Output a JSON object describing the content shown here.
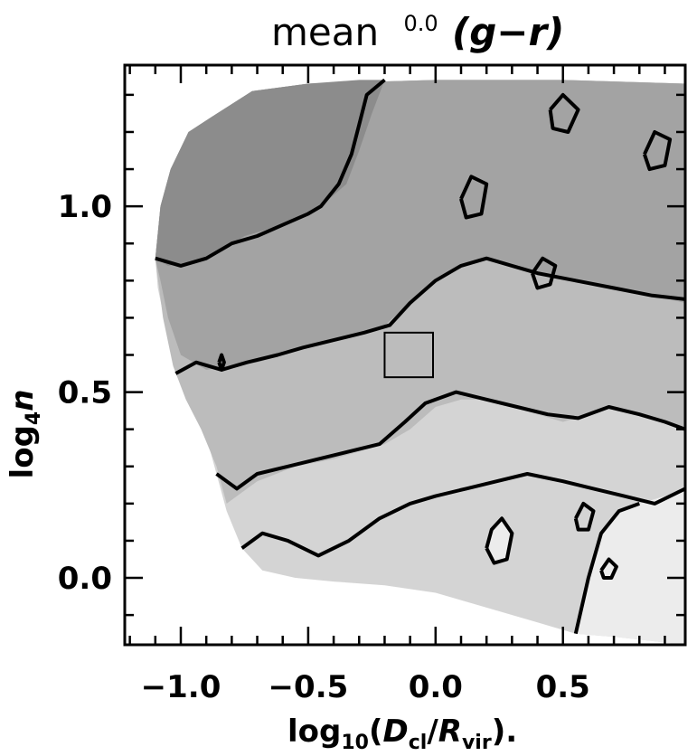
{
  "chart_data": {
    "type": "contour",
    "title": "mean",
    "title_superscript": "0.0",
    "title_math": "(g−r)",
    "xlabel": "log₁₀(D_cl/R_vir).",
    "xlabel_parts": {
      "prefix": "log",
      "sub": "10",
      "open": "(",
      "d": "D",
      "d_sub": "cl",
      "slash": "/",
      "r": "R",
      "r_sub": "vir",
      "close": ").",
      "last": ""
    },
    "ylabel_parts": {
      "prefix": "log",
      "sub": "4",
      "var": "n"
    },
    "xlim": [
      -1.22,
      0.98
    ],
    "ylim": [
      -0.18,
      1.38
    ],
    "xticks": [
      -1.0,
      -0.5,
      0.0,
      0.5
    ],
    "xtick_labels": [
      "−1.0",
      "−0.5",
      "0.0",
      "0.5"
    ],
    "yticks": [
      0.0,
      0.5,
      1.0
    ],
    "ytick_labels": [
      "0.0",
      "0.5",
      "1.0"
    ],
    "colors": {
      "level_darkest": "#8c8c8c",
      "level_dark": "#a3a3a3",
      "level_mid": "#bcbcbc",
      "level_light": "#d4d4d4",
      "level_lightest": "#ececec",
      "contour_line": "#000000",
      "background": "#ffffff"
    },
    "filled_regions": [
      {
        "level": "level_light",
        "points": [
          [
            -1.1,
            0.86
          ],
          [
            -1.08,
            1.0
          ],
          [
            -1.04,
            1.1
          ],
          [
            -0.97,
            1.2
          ],
          [
            -0.88,
            1.24
          ],
          [
            -0.72,
            1.31
          ],
          [
            -0.5,
            1.33
          ],
          [
            0.0,
            1.34
          ],
          [
            0.5,
            1.34
          ],
          [
            0.98,
            1.33
          ],
          [
            0.98,
            -0.18
          ],
          [
            0.72,
            -0.16
          ],
          [
            0.55,
            -0.15
          ],
          [
            0.4,
            -0.12
          ],
          [
            0.2,
            -0.08
          ],
          [
            0.0,
            -0.04
          ],
          [
            -0.2,
            -0.02
          ],
          [
            -0.4,
            -0.01
          ],
          [
            -0.55,
            0.0
          ],
          [
            -0.68,
            0.02
          ],
          [
            -0.76,
            0.08
          ],
          [
            -0.82,
            0.18
          ],
          [
            -0.86,
            0.28
          ],
          [
            -0.9,
            0.38
          ],
          [
            -0.96,
            0.46
          ],
          [
            -1.02,
            0.55
          ],
          [
            -1.06,
            0.68
          ],
          [
            -1.09,
            0.78
          ]
        ]
      },
      {
        "level": "level_mid",
        "points": [
          [
            -1.1,
            0.86
          ],
          [
            -1.08,
            1.0
          ],
          [
            -1.04,
            1.1
          ],
          [
            -0.97,
            1.2
          ],
          [
            -0.88,
            1.24
          ],
          [
            -0.72,
            1.31
          ],
          [
            -0.5,
            1.33
          ],
          [
            0.0,
            1.34
          ],
          [
            0.5,
            1.34
          ],
          [
            0.98,
            1.33
          ],
          [
            0.98,
            0.4
          ],
          [
            0.9,
            0.42
          ],
          [
            0.8,
            0.44
          ],
          [
            0.7,
            0.46
          ],
          [
            0.6,
            0.44
          ],
          [
            0.5,
            0.42
          ],
          [
            0.4,
            0.44
          ],
          [
            0.3,
            0.46
          ],
          [
            0.2,
            0.48
          ],
          [
            0.1,
            0.48
          ],
          [
            0.0,
            0.46
          ],
          [
            -0.1,
            0.4
          ],
          [
            -0.2,
            0.36
          ],
          [
            -0.3,
            0.34
          ],
          [
            -0.4,
            0.32
          ],
          [
            -0.55,
            0.3
          ],
          [
            -0.7,
            0.26
          ],
          [
            -0.78,
            0.22
          ],
          [
            -0.82,
            0.2
          ],
          [
            -0.86,
            0.3
          ],
          [
            -0.92,
            0.4
          ],
          [
            -0.98,
            0.48
          ],
          [
            -1.03,
            0.57
          ],
          [
            -1.07,
            0.7
          ]
        ]
      },
      {
        "level": "level_dark",
        "points": [
          [
            -1.1,
            0.86
          ],
          [
            -1.08,
            1.0
          ],
          [
            -1.04,
            1.1
          ],
          [
            -0.97,
            1.2
          ],
          [
            -0.88,
            1.24
          ],
          [
            -0.72,
            1.31
          ],
          [
            -0.5,
            1.33
          ],
          [
            0.0,
            1.34
          ],
          [
            0.5,
            1.34
          ],
          [
            0.98,
            1.33
          ],
          [
            0.98,
            0.74
          ],
          [
            0.85,
            0.76
          ],
          [
            0.7,
            0.78
          ],
          [
            0.55,
            0.8
          ],
          [
            0.4,
            0.82
          ],
          [
            0.3,
            0.84
          ],
          [
            0.2,
            0.86
          ],
          [
            0.1,
            0.84
          ],
          [
            0.0,
            0.8
          ],
          [
            -0.1,
            0.74
          ],
          [
            -0.2,
            0.68
          ],
          [
            -0.3,
            0.66
          ],
          [
            -0.4,
            0.64
          ],
          [
            -0.5,
            0.62
          ],
          [
            -0.6,
            0.6
          ],
          [
            -0.7,
            0.58
          ],
          [
            -0.8,
            0.57
          ],
          [
            -0.9,
            0.56
          ],
          [
            -1.0,
            0.6
          ],
          [
            -1.05,
            0.7
          ],
          [
            -1.08,
            0.8
          ]
        ]
      },
      {
        "level": "level_darkest",
        "points": [
          [
            -1.1,
            0.86
          ],
          [
            -1.08,
            1.0
          ],
          [
            -1.04,
            1.1
          ],
          [
            -0.97,
            1.2
          ],
          [
            -0.88,
            1.24
          ],
          [
            -0.72,
            1.31
          ],
          [
            -0.5,
            1.33
          ],
          [
            -0.3,
            1.34
          ],
          [
            -0.2,
            1.34
          ],
          [
            -0.25,
            1.25
          ],
          [
            -0.3,
            1.15
          ],
          [
            -0.35,
            1.06
          ],
          [
            -0.45,
            1.0
          ],
          [
            -0.55,
            0.96
          ],
          [
            -0.65,
            0.94
          ],
          [
            -0.75,
            0.92
          ],
          [
            -0.85,
            0.88
          ],
          [
            -0.95,
            0.85
          ],
          [
            -1.05,
            0.84
          ]
        ]
      },
      {
        "level": "level_lightest",
        "points": [
          [
            0.55,
            -0.15
          ],
          [
            0.6,
            0.0
          ],
          [
            0.65,
            0.12
          ],
          [
            0.72,
            0.18
          ],
          [
            0.8,
            0.2
          ],
          [
            0.9,
            0.22
          ],
          [
            0.98,
            0.24
          ],
          [
            0.98,
            -0.18
          ],
          [
            0.72,
            -0.16
          ]
        ]
      },
      {
        "level": "level_lightest",
        "points": [
          [
            0.2,
            0.08
          ],
          [
            0.22,
            0.13
          ],
          [
            0.26,
            0.16
          ],
          [
            0.3,
            0.12
          ],
          [
            0.28,
            0.05
          ],
          [
            0.23,
            0.04
          ]
        ]
      }
    ],
    "contour_lines": [
      [
        [
          -1.1,
          0.86
        ],
        [
          -1.0,
          0.84
        ],
        [
          -0.9,
          0.86
        ],
        [
          -0.8,
          0.9
        ],
        [
          -0.7,
          0.92
        ],
        [
          -0.6,
          0.95
        ],
        [
          -0.5,
          0.98
        ],
        [
          -0.45,
          1.0
        ],
        [
          -0.38,
          1.06
        ],
        [
          -0.33,
          1.14
        ],
        [
          -0.3,
          1.22
        ],
        [
          -0.27,
          1.3
        ],
        [
          -0.2,
          1.34
        ]
      ],
      [
        [
          -1.02,
          0.55
        ],
        [
          -0.94,
          0.58
        ],
        [
          -0.84,
          0.56
        ],
        [
          -0.74,
          0.58
        ],
        [
          -0.62,
          0.6
        ],
        [
          -0.52,
          0.62
        ],
        [
          -0.4,
          0.64
        ],
        [
          -0.28,
          0.66
        ],
        [
          -0.18,
          0.68
        ],
        [
          -0.1,
          0.74
        ],
        [
          0.0,
          0.8
        ],
        [
          0.1,
          0.84
        ],
        [
          0.2,
          0.86
        ],
        [
          0.3,
          0.84
        ],
        [
          0.4,
          0.82
        ],
        [
          0.55,
          0.8
        ],
        [
          0.7,
          0.78
        ],
        [
          0.85,
          0.76
        ],
        [
          0.98,
          0.75
        ]
      ],
      [
        [
          -0.86,
          0.28
        ],
        [
          -0.78,
          0.24
        ],
        [
          -0.7,
          0.28
        ],
        [
          -0.58,
          0.3
        ],
        [
          -0.46,
          0.32
        ],
        [
          -0.34,
          0.34
        ],
        [
          -0.22,
          0.36
        ],
        [
          -0.12,
          0.42
        ],
        [
          -0.04,
          0.47
        ],
        [
          0.08,
          0.5
        ],
        [
          0.2,
          0.48
        ],
        [
          0.32,
          0.46
        ],
        [
          0.44,
          0.44
        ],
        [
          0.56,
          0.43
        ],
        [
          0.68,
          0.46
        ],
        [
          0.8,
          0.44
        ],
        [
          0.9,
          0.42
        ],
        [
          0.98,
          0.4
        ]
      ],
      [
        [
          -0.76,
          0.08
        ],
        [
          -0.68,
          0.12
        ],
        [
          -0.58,
          0.1
        ],
        [
          -0.46,
          0.06
        ],
        [
          -0.34,
          0.1
        ],
        [
          -0.22,
          0.16
        ],
        [
          -0.1,
          0.2
        ],
        [
          0.0,
          0.22
        ],
        [
          0.12,
          0.24
        ],
        [
          0.24,
          0.26
        ],
        [
          0.36,
          0.28
        ],
        [
          0.5,
          0.26
        ],
        [
          0.62,
          0.24
        ],
        [
          0.74,
          0.22
        ],
        [
          0.86,
          0.2
        ],
        [
          0.98,
          0.24
        ]
      ],
      [
        [
          0.2,
          0.08
        ],
        [
          0.22,
          0.13
        ],
        [
          0.26,
          0.16
        ],
        [
          0.3,
          0.12
        ],
        [
          0.28,
          0.05
        ],
        [
          0.23,
          0.04
        ],
        [
          0.2,
          0.08
        ]
      ],
      [
        [
          0.55,
          -0.15
        ],
        [
          0.6,
          0.0
        ],
        [
          0.65,
          0.12
        ],
        [
          0.72,
          0.18
        ],
        [
          0.8,
          0.2
        ]
      ],
      [
        [
          0.45,
          1.26
        ],
        [
          0.5,
          1.3
        ],
        [
          0.56,
          1.26
        ],
        [
          0.52,
          1.2
        ],
        [
          0.46,
          1.21
        ],
        [
          0.45,
          1.26
        ]
      ],
      [
        [
          0.82,
          1.14
        ],
        [
          0.86,
          1.2
        ],
        [
          0.92,
          1.18
        ],
        [
          0.9,
          1.11
        ],
        [
          0.84,
          1.1
        ],
        [
          0.82,
          1.14
        ]
      ],
      [
        [
          0.1,
          1.02
        ],
        [
          0.14,
          1.08
        ],
        [
          0.2,
          1.06
        ],
        [
          0.18,
          0.98
        ],
        [
          0.12,
          0.97
        ],
        [
          0.1,
          1.02
        ]
      ],
      [
        [
          0.38,
          0.82
        ],
        [
          0.42,
          0.86
        ],
        [
          0.47,
          0.84
        ],
        [
          0.45,
          0.79
        ],
        [
          0.4,
          0.78
        ],
        [
          0.38,
          0.82
        ]
      ],
      [
        [
          -0.85,
          0.58
        ],
        [
          -0.84,
          0.6
        ],
        [
          -0.83,
          0.58
        ],
        [
          -0.84,
          0.56
        ],
        [
          -0.85,
          0.58
        ]
      ],
      [
        [
          0.55,
          0.16
        ],
        [
          0.58,
          0.2
        ],
        [
          0.62,
          0.18
        ],
        [
          0.6,
          0.13
        ],
        [
          0.56,
          0.13
        ],
        [
          0.55,
          0.16
        ]
      ],
      [
        [
          0.65,
          0.02
        ],
        [
          0.68,
          0.05
        ],
        [
          0.71,
          0.03
        ],
        [
          0.69,
          0.0
        ],
        [
          0.66,
          0.0
        ],
        [
          0.65,
          0.02
        ]
      ]
    ],
    "highlight_box": {
      "x": [
        -0.2,
        -0.01
      ],
      "y": [
        0.54,
        0.66
      ]
    },
    "grid": false
  }
}
